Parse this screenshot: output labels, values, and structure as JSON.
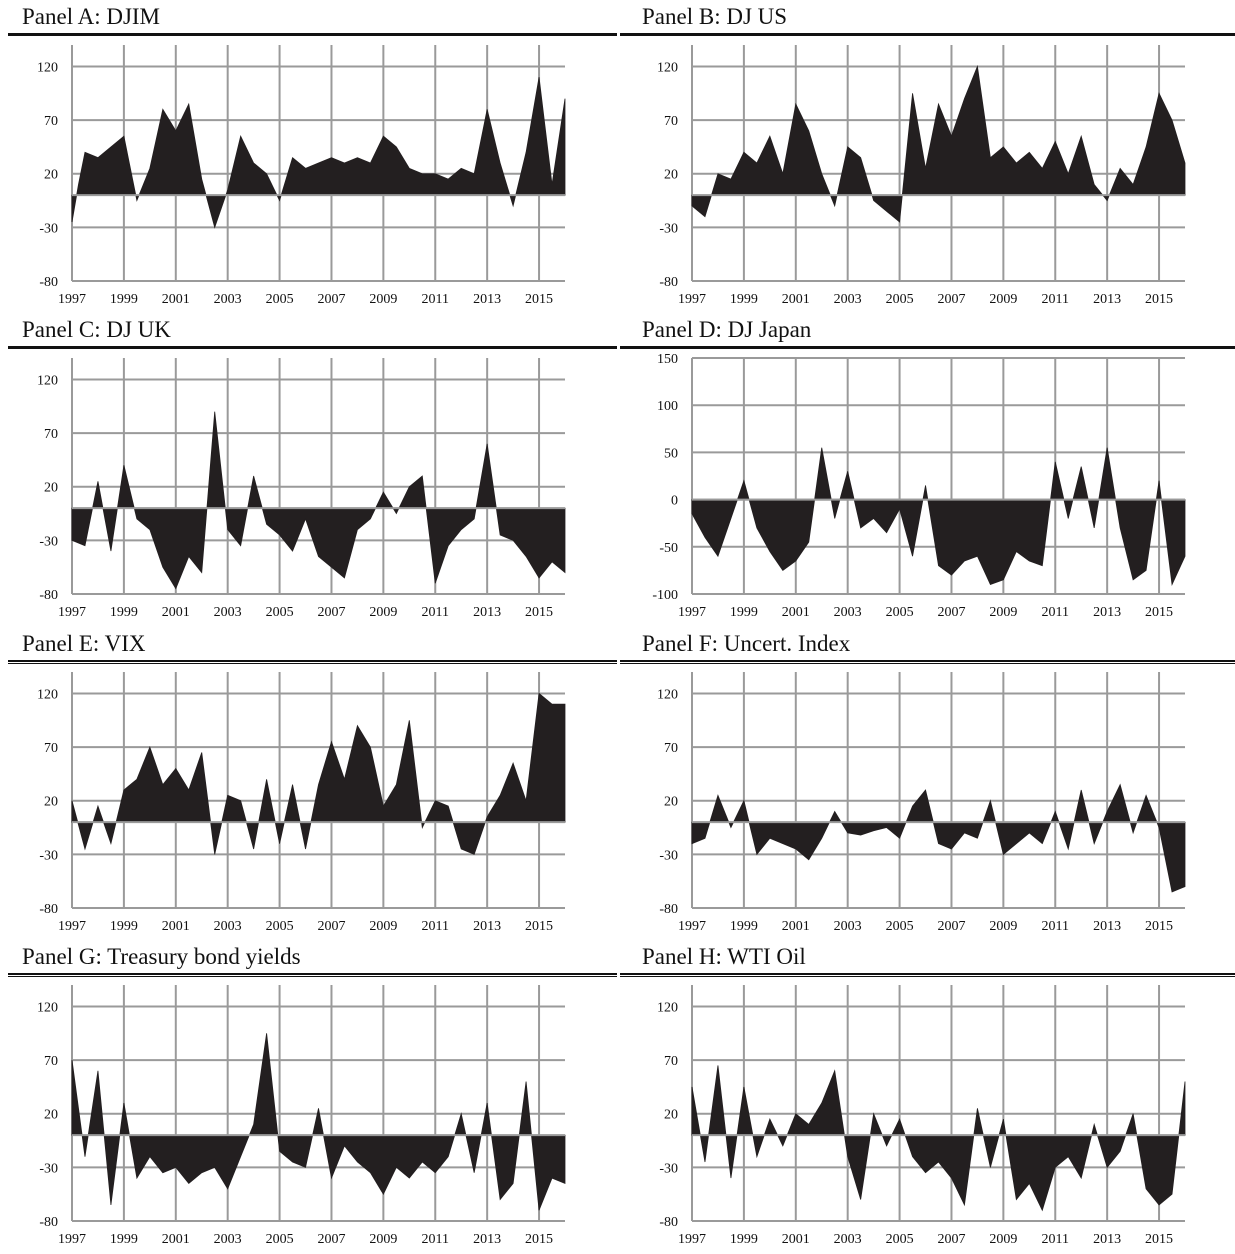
{
  "chart_data": [
    {
      "panel": "A",
      "title": "Panel A: DJIM",
      "type": "area",
      "x_ticks": [
        "1997",
        "1999",
        "2001",
        "2003",
        "2005",
        "2007",
        "2009",
        "2011",
        "2013",
        "2015"
      ],
      "y_ticks": [
        "120",
        "70",
        "20",
        "-30",
        "-80"
      ],
      "ylim": [
        -80,
        140
      ],
      "xlim": [
        1997,
        2016
      ],
      "series": [
        {
          "x": [
            1997.0,
            1997.25,
            1997.5,
            1998.0,
            1998.5,
            1999.0,
            1999.5,
            2000.0,
            2000.5,
            2001.0,
            2001.5,
            2002.0,
            2002.5,
            2003.0,
            2003.5,
            2004.0,
            2004.5,
            2005.0,
            2005.5,
            2006.0,
            2006.5,
            2007.0,
            2007.5,
            2008.0,
            2008.5,
            2009.0,
            2009.5,
            2010.0,
            2010.5,
            2011.0,
            2011.5,
            2012.0,
            2012.5,
            2013.0,
            2013.5,
            2014.0,
            2014.5,
            2015.0,
            2015.5,
            2016.0
          ],
          "values": [
            -25,
            10,
            40,
            35,
            45,
            55,
            -5,
            25,
            80,
            60,
            85,
            15,
            -30,
            5,
            55,
            30,
            20,
            -5,
            35,
            25,
            30,
            35,
            30,
            35,
            30,
            55,
            45,
            25,
            20,
            20,
            15,
            25,
            20,
            80,
            30,
            -10,
            40,
            110,
            10,
            90
          ]
        }
      ],
      "grid": true,
      "legend": "none"
    },
    {
      "panel": "B",
      "title": "Panel B: DJ US",
      "type": "area",
      "x_ticks": [
        "1997",
        "1999",
        "2001",
        "2003",
        "2005",
        "2007",
        "2009",
        "2011",
        "2013",
        "2015"
      ],
      "y_ticks": [
        "120",
        "70",
        "20",
        "-30",
        "-80"
      ],
      "ylim": [
        -80,
        140
      ],
      "xlim": [
        1997,
        2016
      ],
      "series": [
        {
          "x": [
            1997.0,
            1997.5,
            1998.0,
            1998.5,
            1999.0,
            1999.5,
            2000.0,
            2000.5,
            2001.0,
            2001.5,
            2002.0,
            2002.5,
            2003.0,
            2003.5,
            2004.0,
            2004.5,
            2005.0,
            2005.5,
            2006.0,
            2006.5,
            2007.0,
            2007.5,
            2008.0,
            2008.5,
            2009.0,
            2009.5,
            2010.0,
            2010.5,
            2011.0,
            2011.5,
            2012.0,
            2012.5,
            2013.0,
            2013.5,
            2014.0,
            2014.5,
            2015.0,
            2015.5,
            2016.0
          ],
          "values": [
            -10,
            -20,
            20,
            15,
            40,
            30,
            55,
            20,
            85,
            60,
            20,
            -10,
            45,
            35,
            -5,
            -15,
            -25,
            95,
            25,
            85,
            55,
            90,
            120,
            35,
            45,
            30,
            40,
            25,
            50,
            20,
            55,
            10,
            -5,
            25,
            10,
            45,
            95,
            70,
            30
          ]
        }
      ],
      "grid": true,
      "legend": "none"
    },
    {
      "panel": "C",
      "title": "Panel C: DJ UK",
      "type": "area",
      "x_ticks": [
        "1997",
        "1999",
        "2001",
        "2003",
        "2005",
        "2007",
        "2009",
        "2011",
        "2013",
        "2015"
      ],
      "y_ticks": [
        "120",
        "70",
        "20",
        "-30",
        "-80"
      ],
      "ylim": [
        -80,
        140
      ],
      "xlim": [
        1997,
        2016
      ],
      "series": [
        {
          "x": [
            1997.0,
            1997.5,
            1998.0,
            1998.5,
            1999.0,
            1999.5,
            2000.0,
            2000.5,
            2001.0,
            2001.5,
            2002.0,
            2002.5,
            2003.0,
            2003.5,
            2004.0,
            2004.5,
            2005.0,
            2005.5,
            2006.0,
            2006.5,
            2007.0,
            2007.5,
            2008.0,
            2008.5,
            2009.0,
            2009.5,
            2010.0,
            2010.5,
            2011.0,
            2011.5,
            2012.0,
            2012.5,
            2013.0,
            2013.5,
            2014.0,
            2014.5,
            2015.0,
            2015.5,
            2016.0
          ],
          "values": [
            -30,
            -35,
            25,
            -40,
            40,
            -10,
            -20,
            -55,
            -75,
            -45,
            -60,
            90,
            -20,
            -35,
            30,
            -15,
            -25,
            -40,
            -10,
            -45,
            -55,
            -65,
            -20,
            -10,
            15,
            -5,
            20,
            30,
            -70,
            -35,
            -20,
            -10,
            60,
            -25,
            -30,
            -45,
            -65,
            -50,
            -60
          ]
        }
      ],
      "grid": true,
      "legend": "none"
    },
    {
      "panel": "D",
      "title": "Panel D: DJ Japan",
      "type": "area",
      "x_ticks": [
        "1997",
        "1999",
        "2001",
        "2003",
        "2005",
        "2007",
        "2009",
        "2011",
        "2013",
        "2015"
      ],
      "y_ticks": [
        "150",
        "100",
        "50",
        "0",
        "-50",
        "-100"
      ],
      "ylim": [
        -100,
        150
      ],
      "xlim": [
        1997,
        2016
      ],
      "series": [
        {
          "x": [
            1997.0,
            1997.5,
            1998.0,
            1998.5,
            1999.0,
            1999.5,
            2000.0,
            2000.5,
            2001.0,
            2001.5,
            2002.0,
            2002.5,
            2003.0,
            2003.5,
            2004.0,
            2004.5,
            2005.0,
            2005.5,
            2006.0,
            2006.5,
            2007.0,
            2007.5,
            2008.0,
            2008.5,
            2009.0,
            2009.5,
            2010.0,
            2010.5,
            2011.0,
            2011.5,
            2012.0,
            2012.5,
            2013.0,
            2013.5,
            2014.0,
            2014.5,
            2015.0,
            2015.5,
            2016.0
          ],
          "values": [
            -15,
            -40,
            -60,
            -20,
            20,
            -30,
            -55,
            -75,
            -65,
            -45,
            55,
            -20,
            30,
            -30,
            -20,
            -35,
            -10,
            -60,
            15,
            -70,
            -80,
            -65,
            -60,
            -90,
            -85,
            -55,
            -65,
            -70,
            40,
            -20,
            35,
            -30,
            55,
            -30,
            -85,
            -75,
            20,
            -90,
            -60
          ]
        }
      ],
      "grid": true,
      "legend": "none"
    },
    {
      "panel": "E",
      "title": "Panel E: VIX",
      "type": "area",
      "x_ticks": [
        "1997",
        "1999",
        "2001",
        "2003",
        "2005",
        "2007",
        "2009",
        "2011",
        "2013",
        "2015"
      ],
      "y_ticks": [
        "120",
        "70",
        "20",
        "-30",
        "-80"
      ],
      "ylim": [
        -80,
        140
      ],
      "xlim": [
        1997,
        2016
      ],
      "series": [
        {
          "x": [
            1997.0,
            1997.5,
            1998.0,
            1998.5,
            1999.0,
            1999.5,
            2000.0,
            2000.5,
            2001.0,
            2001.5,
            2002.0,
            2002.5,
            2003.0,
            2003.5,
            2004.0,
            2004.5,
            2005.0,
            2005.5,
            2006.0,
            2006.5,
            2007.0,
            2007.5,
            2008.0,
            2008.5,
            2009.0,
            2009.5,
            2010.0,
            2010.5,
            2011.0,
            2011.5,
            2012.0,
            2012.5,
            2013.0,
            2013.5,
            2014.0,
            2014.5,
            2015.0,
            2015.5,
            2016.0
          ],
          "values": [
            20,
            -25,
            15,
            -20,
            30,
            40,
            70,
            35,
            50,
            30,
            65,
            -30,
            25,
            20,
            -25,
            40,
            -20,
            35,
            -25,
            35,
            75,
            40,
            90,
            70,
            15,
            35,
            95,
            -5,
            20,
            15,
            -25,
            -30,
            5,
            25,
            55,
            20,
            120,
            110,
            110
          ]
        }
      ],
      "grid": true,
      "legend": "none"
    },
    {
      "panel": "F",
      "title": "Panel F: Uncert. Index",
      "type": "area",
      "x_ticks": [
        "1997",
        "1999",
        "2001",
        "2003",
        "2005",
        "2007",
        "2009",
        "2011",
        "2013",
        "2015"
      ],
      "y_ticks": [
        "120",
        "70",
        "20",
        "-30",
        "-80"
      ],
      "ylim": [
        -80,
        140
      ],
      "xlim": [
        1997,
        2016
      ],
      "series": [
        {
          "x": [
            1997.0,
            1997.5,
            1998.0,
            1998.5,
            1999.0,
            1999.5,
            2000.0,
            2000.5,
            2001.0,
            2001.5,
            2002.0,
            2002.5,
            2003.0,
            2003.5,
            2004.0,
            2004.5,
            2005.0,
            2005.5,
            2006.0,
            2006.5,
            2007.0,
            2007.5,
            2008.0,
            2008.5,
            2009.0,
            2009.5,
            2010.0,
            2010.5,
            2011.0,
            2011.5,
            2012.0,
            2012.5,
            2013.0,
            2013.5,
            2014.0,
            2014.5,
            2015.0,
            2015.5,
            2016.0
          ],
          "values": [
            -20,
            -15,
            25,
            -5,
            20,
            -30,
            -15,
            -20,
            -25,
            -35,
            -15,
            10,
            -10,
            -12,
            -8,
            -5,
            -15,
            15,
            30,
            -20,
            -25,
            -10,
            -15,
            20,
            -30,
            -20,
            -10,
            -20,
            10,
            -25,
            30,
            -20,
            10,
            35,
            -10,
            25,
            -5,
            -65,
            -60
          ]
        }
      ],
      "grid": true,
      "legend": "none"
    },
    {
      "panel": "G",
      "title": "Panel G: Treasury bond yields",
      "type": "area",
      "x_ticks": [
        "1997",
        "1999",
        "2001",
        "2003",
        "2005",
        "2007",
        "2009",
        "2011",
        "2013",
        "2015"
      ],
      "y_ticks": [
        "120",
        "70",
        "20",
        "-30",
        "-80"
      ],
      "ylim": [
        -80,
        140
      ],
      "xlim": [
        1997,
        2016
      ],
      "series": [
        {
          "x": [
            1997.0,
            1997.5,
            1998.0,
            1998.5,
            1999.0,
            1999.5,
            2000.0,
            2000.5,
            2001.0,
            2001.5,
            2002.0,
            2002.5,
            2003.0,
            2003.5,
            2004.0,
            2004.5,
            2005.0,
            2005.5,
            2006.0,
            2006.5,
            2007.0,
            2007.5,
            2008.0,
            2008.5,
            2009.0,
            2009.5,
            2010.0,
            2010.5,
            2011.0,
            2011.5,
            2012.0,
            2012.5,
            2013.0,
            2013.5,
            2014.0,
            2014.5,
            2015.0,
            2015.5,
            2016.0
          ],
          "values": [
            70,
            -20,
            60,
            -65,
            30,
            -40,
            -20,
            -35,
            -30,
            -45,
            -35,
            -30,
            -50,
            -20,
            10,
            95,
            -15,
            -25,
            -30,
            25,
            -40,
            -10,
            -25,
            -35,
            -55,
            -30,
            -40,
            -25,
            -35,
            -20,
            20,
            -35,
            30,
            -60,
            -45,
            50,
            -70,
            -40,
            -45
          ]
        }
      ],
      "grid": true,
      "legend": "none"
    },
    {
      "panel": "H",
      "title": "Panel H: WTI Oil",
      "type": "area",
      "x_ticks": [
        "1997",
        "1999",
        "2001",
        "2003",
        "2005",
        "2007",
        "2009",
        "2011",
        "2013",
        "2015"
      ],
      "y_ticks": [
        "120",
        "70",
        "20",
        "-30",
        "-80"
      ],
      "ylim": [
        -80,
        140
      ],
      "xlim": [
        1997,
        2016
      ],
      "series": [
        {
          "x": [
            1997.0,
            1997.5,
            1998.0,
            1998.5,
            1999.0,
            1999.5,
            2000.0,
            2000.5,
            2001.0,
            2001.5,
            2002.0,
            2002.5,
            2003.0,
            2003.5,
            2004.0,
            2004.5,
            2005.0,
            2005.5,
            2006.0,
            2006.5,
            2007.0,
            2007.5,
            2008.0,
            2008.5,
            2009.0,
            2009.5,
            2010.0,
            2010.5,
            2011.0,
            2011.5,
            2012.0,
            2012.5,
            2013.0,
            2013.5,
            2014.0,
            2014.5,
            2015.0,
            2015.5,
            2016.0
          ],
          "values": [
            45,
            -25,
            65,
            -40,
            45,
            -20,
            15,
            -10,
            20,
            10,
            30,
            60,
            -20,
            -60,
            20,
            -10,
            15,
            -20,
            -35,
            -25,
            -40,
            -65,
            25,
            -30,
            15,
            -60,
            -45,
            -70,
            -30,
            -20,
            -40,
            10,
            -30,
            -15,
            20,
            -50,
            -65,
            -55,
            50
          ]
        }
      ],
      "grid": true,
      "legend": "none"
    }
  ]
}
